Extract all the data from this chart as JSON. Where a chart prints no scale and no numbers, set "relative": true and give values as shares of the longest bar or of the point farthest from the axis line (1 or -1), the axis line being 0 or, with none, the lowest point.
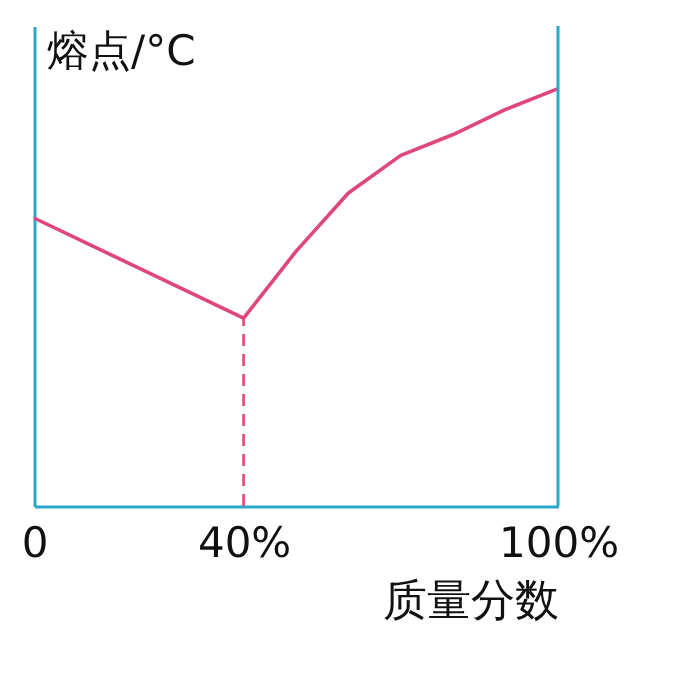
{
  "chart_data": {
    "type": "line",
    "xlabel": "质量分数",
    "ylabel": "熔点/°C",
    "relative": true,
    "x": [
      0,
      40,
      50,
      60,
      70,
      80,
      90,
      100
    ],
    "series": [
      {
        "color": "#e0457b",
        "values": [
          0.69,
          0.45,
          0.61,
          0.75,
          0.84,
          0.89,
          0.95,
          1
        ]
      }
    ],
    "xlim": [
      0,
      100
    ],
    "xticks": [
      0,
      {
        "value": 40,
        "label": "40%"
      },
      {
        "value": 100,
        "label": "100%"
      }
    ],
    "ref_lines": [
      {
        "axis": "x",
        "value": 40,
        "line_style": "dashed",
        "color": "#e0457b"
      }
    ],
    "marker": "none",
    "line_style": "solid"
  }
}
